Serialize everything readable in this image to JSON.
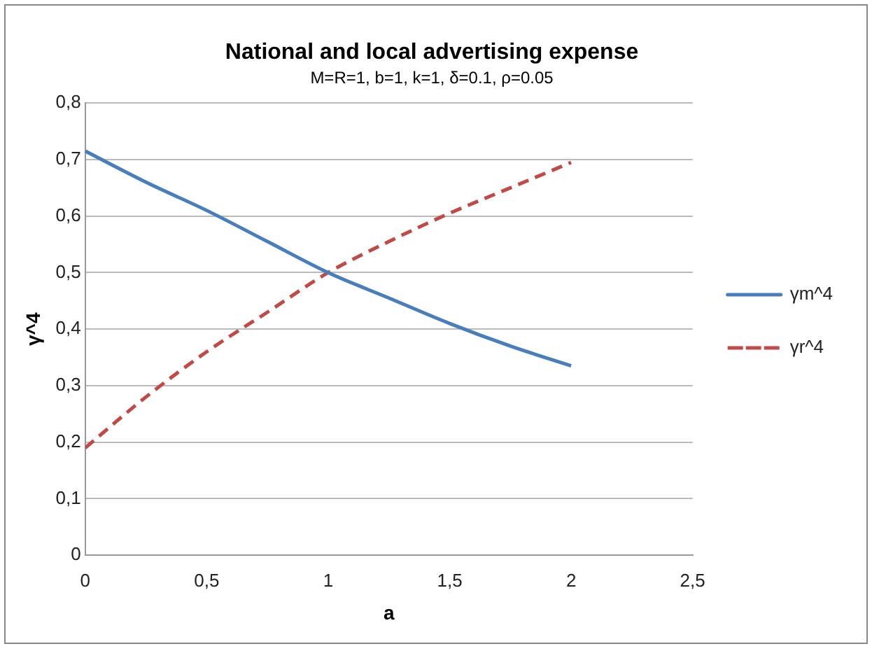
{
  "chart_data": {
    "type": "line",
    "title": "National and local advertising expense",
    "subtitle": "M=R=1, b=1, k=1, δ=0.1, ρ=0.05",
    "xlabel": "a",
    "ylabel": "γ^4",
    "x": [
      0,
      0.25,
      0.5,
      0.75,
      1,
      1.25,
      1.5,
      1.75,
      2
    ],
    "series": [
      {
        "name": "γm^4",
        "color": "#4a7ebb",
        "line_style": "solid",
        "values": [
          0.715,
          0.66,
          0.61,
          0.555,
          0.5,
          0.455,
          0.41,
          0.37,
          0.335
        ]
      },
      {
        "name": "γr^4",
        "color": "#be4b48",
        "line_style": "dashed",
        "values": [
          0.19,
          0.28,
          0.36,
          0.43,
          0.5,
          0.555,
          0.605,
          0.65,
          0.695
        ]
      }
    ],
    "xlim": [
      0,
      2.5
    ],
    "xticks": [
      0,
      {
        "value": 0.5,
        "label": "0,5"
      },
      1,
      {
        "value": 1.5,
        "label": "1,5"
      },
      2,
      {
        "value": 2.5,
        "label": "2,5"
      }
    ],
    "ylim": [
      0,
      0.8
    ],
    "yticks": [
      0,
      {
        "value": 0.1,
        "label": "0,1"
      },
      {
        "value": 0.2,
        "label": "0,2"
      },
      {
        "value": 0.3,
        "label": "0,3"
      },
      {
        "value": 0.4,
        "label": "0,4"
      },
      {
        "value": 0.5,
        "label": "0,5"
      },
      {
        "value": 0.6,
        "label": "0,6"
      },
      {
        "value": 0.7,
        "label": "0,7"
      },
      {
        "value": 0.8,
        "label": "0,8"
      }
    ],
    "grid": "y",
    "legend": "right",
    "marker": "none"
  }
}
